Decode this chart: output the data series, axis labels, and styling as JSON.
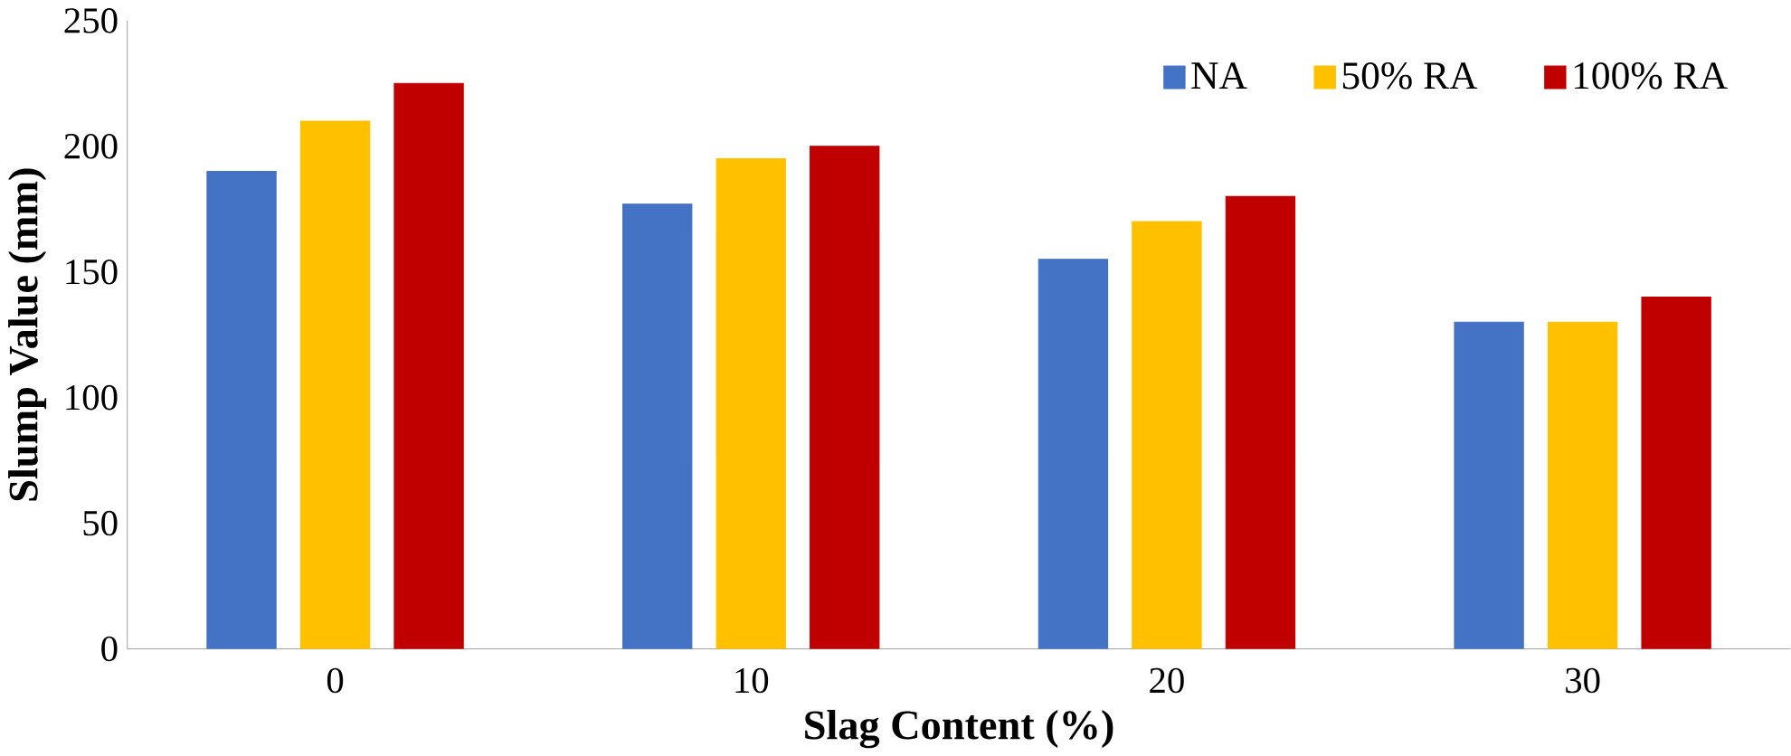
{
  "chart_data": {
    "type": "bar",
    "xlabel": "Slag Content (%)",
    "ylabel": "Slump Value (mm)",
    "categories": [
      "0",
      "10",
      "20",
      "30"
    ],
    "series": [
      {
        "name": "NA",
        "color": "#4472c4",
        "values": [
          190,
          177,
          155,
          130
        ]
      },
      {
        "name": "50% RA",
        "color": "#ffc000",
        "values": [
          210,
          195,
          170,
          130
        ]
      },
      {
        "name": "100% RA",
        "color": "#c00000",
        "values": [
          225,
          200,
          180,
          140
        ]
      }
    ],
    "ylim": [
      0,
      250
    ],
    "yticks": [
      0,
      50,
      100,
      150,
      200,
      250
    ],
    "legend": "top right"
  }
}
